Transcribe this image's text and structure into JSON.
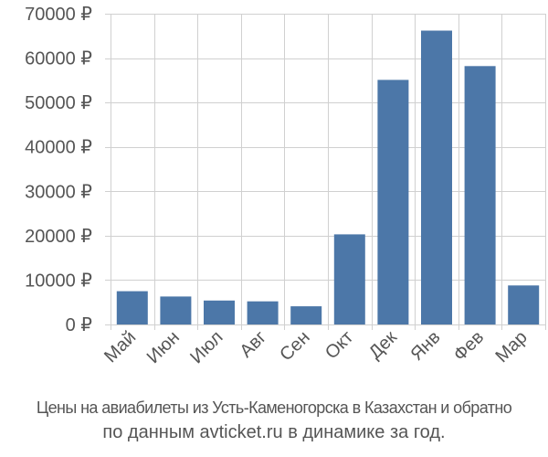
{
  "chart_data": {
    "type": "bar",
    "categories": [
      "Май",
      "Июн",
      "Июл",
      "Авг",
      "Сен",
      "Окт",
      "Дек",
      "Янв",
      "Фев",
      "Мар"
    ],
    "values": [
      7500,
      6300,
      5400,
      5200,
      4100,
      20300,
      55100,
      66200,
      58200,
      8800
    ],
    "ylim": [
      0,
      70000
    ],
    "yticks": [
      0,
      10000,
      20000,
      30000,
      40000,
      50000,
      60000,
      70000
    ],
    "ytick_labels": [
      "0 ₽",
      "10000 ₽",
      "20000 ₽",
      "30000 ₽",
      "40000 ₽",
      "50000 ₽",
      "60000 ₽",
      "70000 ₽"
    ],
    "bar_color": "#4c77a8",
    "grid": true
  },
  "caption": {
    "line1": "Цены на авиабилеты из Усть-Каменогорска в Казахстан и обратно",
    "line2": "по данным avticket.ru в динамике за год."
  }
}
